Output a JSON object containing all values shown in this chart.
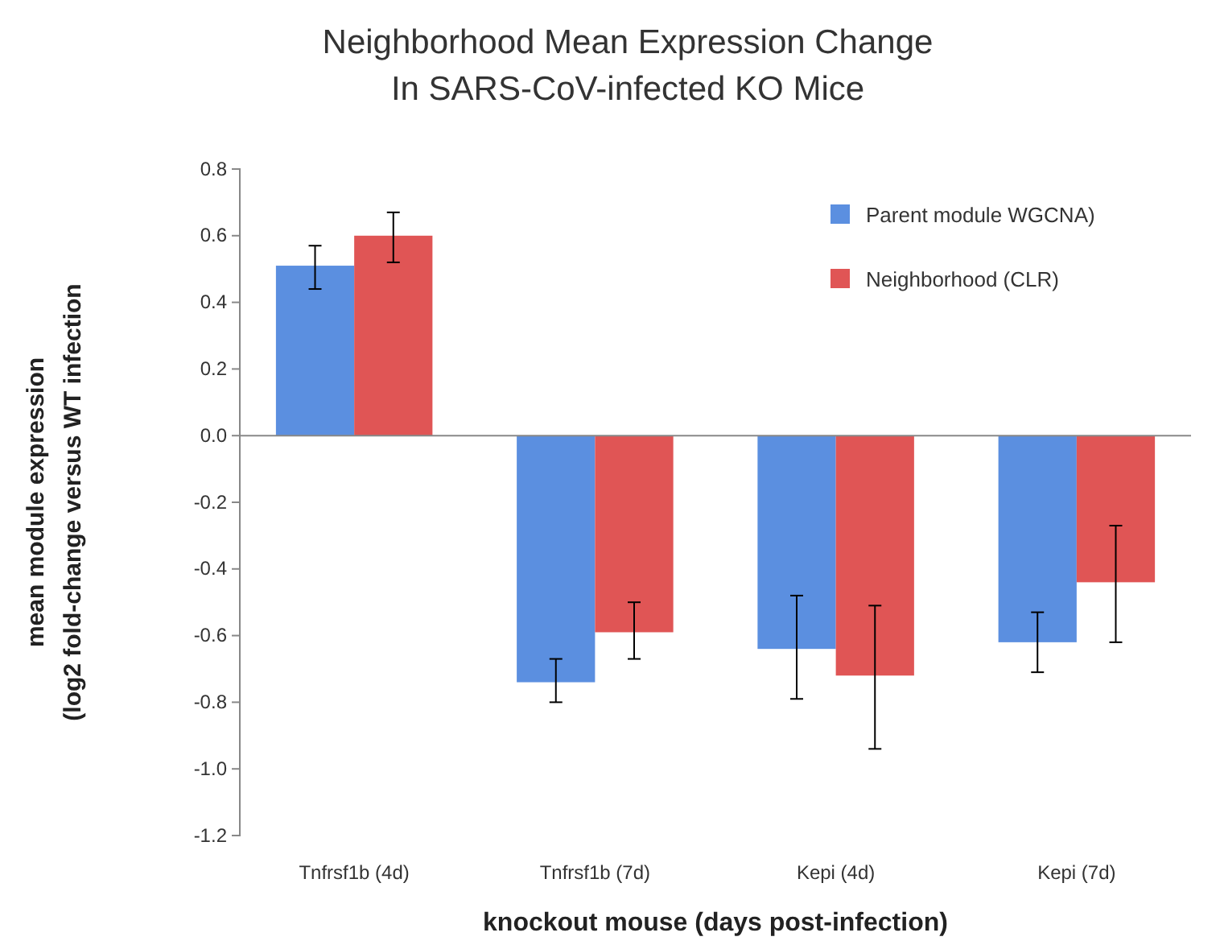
{
  "chart_data": {
    "type": "bar",
    "title": "Neighborhood Mean Expression Change\nIn SARS-CoV-infected KO Mice",
    "xlabel": "knockout mouse (days post-infection)",
    "ylabel": "mean module expression\n(log2 fold-change versus WT infection",
    "categories": [
      "Tnfrsf1b (4d)",
      "Tnfrsf1b (7d)",
      "Kepi (4d)",
      "Kepi (7d)"
    ],
    "series": [
      {
        "name": "Parent module WGCNA)",
        "color": "#5b8fe0",
        "values": [
          0.51,
          -0.74,
          -0.64,
          -0.62
        ],
        "errors": [
          [
            0.44,
            0.57
          ],
          [
            -0.8,
            -0.67
          ],
          [
            -0.79,
            -0.48
          ],
          [
            -0.71,
            -0.53
          ]
        ]
      },
      {
        "name": "Neighborhood (CLR)",
        "color": "#e05555",
        "values": [
          0.6,
          -0.59,
          -0.72,
          -0.44
        ],
        "errors": [
          [
            0.52,
            0.67
          ],
          [
            -0.67,
            -0.5
          ],
          [
            -0.94,
            -0.51
          ],
          [
            -0.62,
            -0.27
          ]
        ]
      }
    ],
    "ylim": [
      -1.2,
      0.8
    ],
    "yticks": [
      {
        "value": 0.8,
        "label": "0.8"
      },
      {
        "value": 0.6,
        "label": "0.6"
      },
      {
        "value": 0.4,
        "label": "0.4"
      },
      {
        "value": 0.2,
        "label": "0.2"
      },
      {
        "value": 0,
        "label": "0.0"
      },
      {
        "value": -0.2,
        "label": "-0.2"
      },
      {
        "value": -0.4,
        "label": "-0.4"
      },
      {
        "value": -0.6,
        "label": "-0.6"
      },
      {
        "value": -0.8,
        "label": "-0.8"
      },
      {
        "value": -1,
        "label": "-1.0"
      },
      {
        "value": -1.2,
        "label": "-1.2"
      }
    ],
    "legend": "top right"
  }
}
